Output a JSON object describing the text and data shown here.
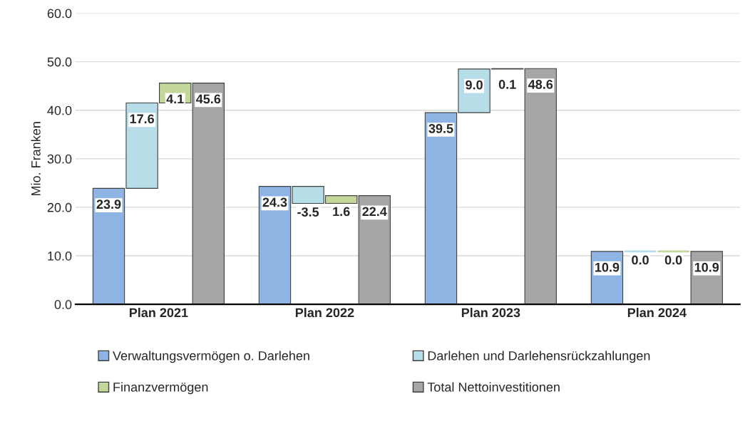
{
  "chart_data": {
    "type": "bar",
    "ylabel": "Mio. Franken",
    "categories": [
      "Plan 2021",
      "Plan 2022",
      "Plan 2023",
      "Plan 2024"
    ],
    "series": [
      {
        "name": "Verwaltungsvermögen o. Darlehen",
        "color": "#8db4e2",
        "values": [
          23.9,
          24.3,
          39.5,
          10.9
        ],
        "base": [
          0,
          0,
          0,
          0
        ]
      },
      {
        "name": "Darlehen und Darlehensrückzahlungen",
        "color": "#b7dee8",
        "values": [
          17.6,
          -3.5,
          9.0,
          0.0
        ],
        "value_labels": [
          "17.6",
          "-3.5",
          "9.0",
          "0.0"
        ],
        "base": [
          23.9,
          24.3,
          39.5,
          10.9
        ]
      },
      {
        "name": "Finanzvermögen",
        "color": "#c4d79b",
        "values": [
          4.1,
          1.6,
          0.1,
          0.0
        ],
        "value_labels": [
          "4.1",
          "1.6",
          "0.1",
          "0.0"
        ],
        "base": [
          41.5,
          20.8,
          48.5,
          10.9
        ]
      },
      {
        "name": "Total Nettoinvestitionen",
        "color": "#a6a6a6",
        "values": [
          45.6,
          22.4,
          48.6,
          10.9
        ],
        "base": [
          0,
          0,
          0,
          0
        ]
      }
    ],
    "ylim": [
      0,
      60
    ],
    "yticks": [
      {
        "value": 0,
        "label": "0.0"
      },
      {
        "value": 10,
        "label": "10.0"
      },
      {
        "value": 20,
        "label": "20.0"
      },
      {
        "value": 30,
        "label": "30.0"
      },
      {
        "value": 40,
        "label": "40.0"
      },
      {
        "value": 50,
        "label": "50.0"
      },
      {
        "value": 60,
        "label": "60.0"
      }
    ],
    "grid": "y",
    "legend": "bottom",
    "data_labels": true
  }
}
